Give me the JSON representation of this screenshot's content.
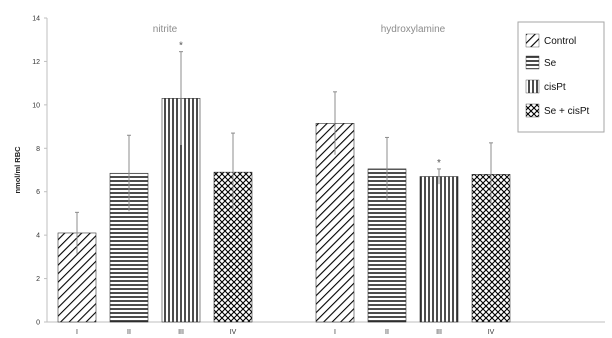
{
  "chart_data": {
    "type": "bar",
    "ylabel": "nmol/ml RBC",
    "ylim": [
      0,
      14
    ],
    "yticks": [
      "0",
      "2",
      "4",
      "6",
      "8",
      "10",
      "12",
      "14"
    ],
    "grid": false,
    "legend_position": "top-right",
    "groups": [
      {
        "label": "nitrite",
        "categories": [
          "I",
          "II",
          "III",
          "IV"
        ],
        "values": [
          4.1,
          6.85,
          10.3,
          6.9
        ],
        "errors": [
          0.95,
          1.75,
          2.15,
          1.8
        ],
        "annotations": [
          "",
          "",
          "*",
          ""
        ]
      },
      {
        "label": "hydroxylamine",
        "categories": [
          "I",
          "II",
          "III",
          "IV"
        ],
        "values": [
          9.15,
          7.05,
          6.7,
          6.8
        ],
        "errors": [
          1.45,
          1.45,
          0.35,
          1.45
        ],
        "annotations": [
          "",
          "",
          "*",
          ""
        ]
      }
    ],
    "series": [
      {
        "name": "Control",
        "pattern": "diagonal"
      },
      {
        "name": "Se",
        "pattern": "horizontal"
      },
      {
        "name": "cisPt",
        "pattern": "vertical"
      },
      {
        "name": "Se + cisPt",
        "pattern": "crosshatch"
      }
    ]
  }
}
